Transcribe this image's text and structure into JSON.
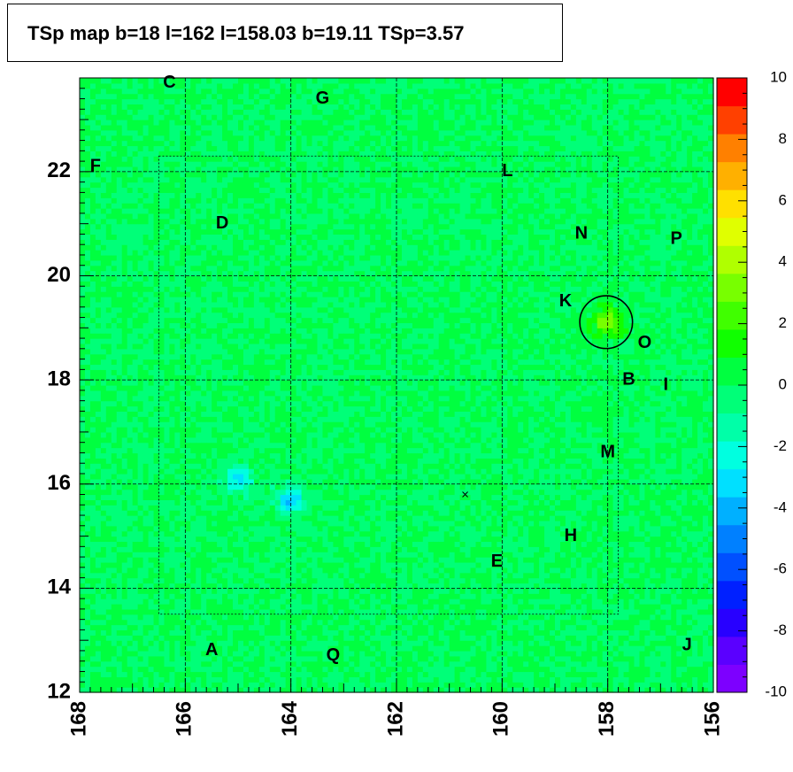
{
  "title": "TSp map b=18 l=162 l=158.03 b=19.11 TSp=3.57",
  "chart_data": {
    "type": "heatmap",
    "title": "TSp map b=18 l=162 l=158.03 b=19.11 TSp=3.57",
    "xlabel": "",
    "ylabel": "",
    "xlim": [
      168,
      156
    ],
    "ylim": [
      12,
      23.8
    ],
    "x_reversed": true,
    "x_ticks": [
      168,
      166,
      164,
      162,
      160,
      158,
      156
    ],
    "y_ticks": [
      12,
      14,
      16,
      18,
      20,
      22
    ],
    "colorbar": {
      "range": [
        -10,
        10
      ],
      "ticks": [
        10,
        8,
        6,
        4,
        2,
        0,
        -2,
        -4,
        -6,
        -8,
        -10
      ],
      "palette": [
        "#7d00ff",
        "#5a00ff",
        "#2800ff",
        "#0020ff",
        "#0050ff",
        "#0080ff",
        "#00b0ff",
        "#00e0ff",
        "#00ffe0",
        "#00ffa8",
        "#00ff78",
        "#00ff40",
        "#10ff00",
        "#40ff00",
        "#78ff00",
        "#b0ff00",
        "#e0ff00",
        "#ffe000",
        "#ffb000",
        "#ff8000",
        "#ff4000",
        "#ff0000"
      ]
    },
    "background_level": 0.0,
    "features": [
      {
        "name": "peak",
        "l": 158.03,
        "b": 19.11,
        "value": 3.57
      },
      {
        "name": "cold region",
        "l": 164.0,
        "b": 15.7,
        "value": -3.5
      },
      {
        "name": "cold region",
        "l": 165.0,
        "b": 16.1,
        "value": -3.0
      }
    ],
    "circle": {
      "l": 158.03,
      "b": 19.11,
      "radius_deg": 0.5
    },
    "cross_marker": {
      "l": 160.7,
      "b": 15.8
    },
    "source_labels": [
      {
        "label": "A",
        "l": 165.5,
        "b": 12.8
      },
      {
        "label": "B",
        "l": 157.6,
        "b": 18.0
      },
      {
        "label": "C",
        "l": 166.3,
        "b": 23.7
      },
      {
        "label": "D",
        "l": 165.3,
        "b": 21.0
      },
      {
        "label": "E",
        "l": 160.1,
        "b": 14.5
      },
      {
        "label": "F",
        "l": 167.7,
        "b": 22.1
      },
      {
        "label": "G",
        "l": 163.4,
        "b": 23.4
      },
      {
        "label": "H",
        "l": 158.7,
        "b": 15.0
      },
      {
        "label": "I",
        "l": 156.9,
        "b": 17.9
      },
      {
        "label": "J",
        "l": 156.5,
        "b": 12.9
      },
      {
        "label": "K",
        "l": 158.8,
        "b": 19.5
      },
      {
        "label": "L",
        "l": 159.9,
        "b": 22.0
      },
      {
        "label": "M",
        "l": 158.0,
        "b": 16.6
      },
      {
        "label": "N",
        "l": 158.5,
        "b": 20.8
      },
      {
        "label": "O",
        "l": 157.3,
        "b": 18.7
      },
      {
        "label": "P",
        "l": 156.7,
        "b": 20.7
      },
      {
        "label": "Q",
        "l": 163.2,
        "b": 12.7
      }
    ]
  }
}
